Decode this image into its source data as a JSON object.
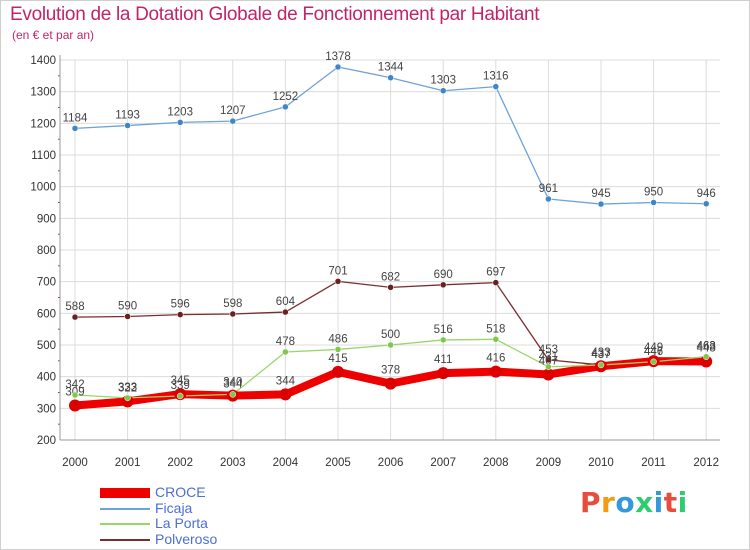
{
  "title": "Evolution de la Dotation Globale de Fonctionnement par Habitant",
  "subtitle": "(en € et par an)",
  "logo": {
    "text": "Proxiti",
    "colors": [
      "#e74c3c",
      "#f39c12",
      "#3498db",
      "#2ecc71",
      "#3498db",
      "#e74c3c",
      "#2ecc71"
    ]
  },
  "chart_data": {
    "type": "line",
    "x": [
      2000,
      2001,
      2002,
      2003,
      2004,
      2005,
      2006,
      2007,
      2008,
      2009,
      2010,
      2011,
      2012
    ],
    "x_tick_labels": [
      "2000",
      "2001",
      "2002",
      "2003",
      "2004",
      "2005",
      "2006",
      "2007",
      "2008",
      "2009",
      "2010",
      "2011",
      "2012"
    ],
    "ylim": [
      200,
      1400
    ],
    "y_ticks": [
      200,
      300,
      400,
      500,
      600,
      700,
      800,
      900,
      1000,
      1100,
      1200,
      1300,
      1400
    ],
    "y_tick_labels": [
      "200",
      "300",
      "400",
      "500",
      "600",
      "700",
      "800",
      "900",
      "1000",
      "1100",
      "1200",
      "1300",
      "1400"
    ],
    "grid": true,
    "legend_position": "bottom-left",
    "series": [
      {
        "name": "CROCE",
        "color": "#ee0000",
        "point_color": "#dd0000",
        "width": 8,
        "values": [
          309,
          322,
          345,
          340,
          344,
          415,
          378,
          411,
          416,
          407,
          433,
          449,
          448
        ],
        "labels": [
          "309",
          "322",
          "345",
          "340",
          "344",
          "415",
          "378",
          "411",
          "416",
          "407",
          "433",
          "449",
          "448"
        ]
      },
      {
        "name": "Ficaja",
        "color": "#6ea3d6",
        "point_color": "#3f86c8",
        "width": 1.3,
        "values": [
          1184,
          1193,
          1203,
          1207,
          1252,
          1378,
          1344,
          1303,
          1316,
          961,
          945,
          950,
          946
        ],
        "labels": [
          "1184",
          "1193",
          "1203",
          "1207",
          "1252",
          "1378",
          "1344",
          "1303",
          "1316",
          "961",
          "945",
          "950",
          "946"
        ]
      },
      {
        "name": "La Porta",
        "color": "#9ad56a",
        "point_color": "#7ec84a",
        "width": 1.3,
        "values": [
          342,
          333,
          339,
          344,
          478,
          486,
          500,
          516,
          518,
          431,
          437,
          447,
          463
        ],
        "labels": [
          "342",
          "333",
          "339",
          "344",
          "478",
          "486",
          "500",
          "516",
          "518",
          "431",
          "437",
          "447",
          "463"
        ]
      },
      {
        "name": "Polveroso",
        "color": "#7a2e2e",
        "point_color": "#6b1f1f",
        "width": 1.3,
        "values": [
          588,
          590,
          596,
          598,
          604,
          701,
          682,
          690,
          697,
          453,
          437,
          446,
          463
        ],
        "labels": [
          "588",
          "590",
          "596",
          "598",
          "604",
          "701",
          "682",
          "690",
          "697",
          "453",
          "437",
          "446",
          "463"
        ]
      }
    ]
  }
}
